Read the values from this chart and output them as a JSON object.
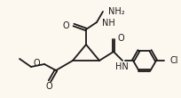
{
  "bg_color": "#fdf8ef",
  "bond_color": "#1a1a1a",
  "text_color": "#1a1a1a",
  "bond_lw": 1.3,
  "font_size": 6.5,
  "fig_width": 2.05,
  "fig_height": 1.1,
  "dpi": 100,
  "cyclopropane": {
    "C1": [
      82,
      68
    ],
    "C2": [
      97,
      50
    ],
    "C3": [
      112,
      68
    ]
  }
}
